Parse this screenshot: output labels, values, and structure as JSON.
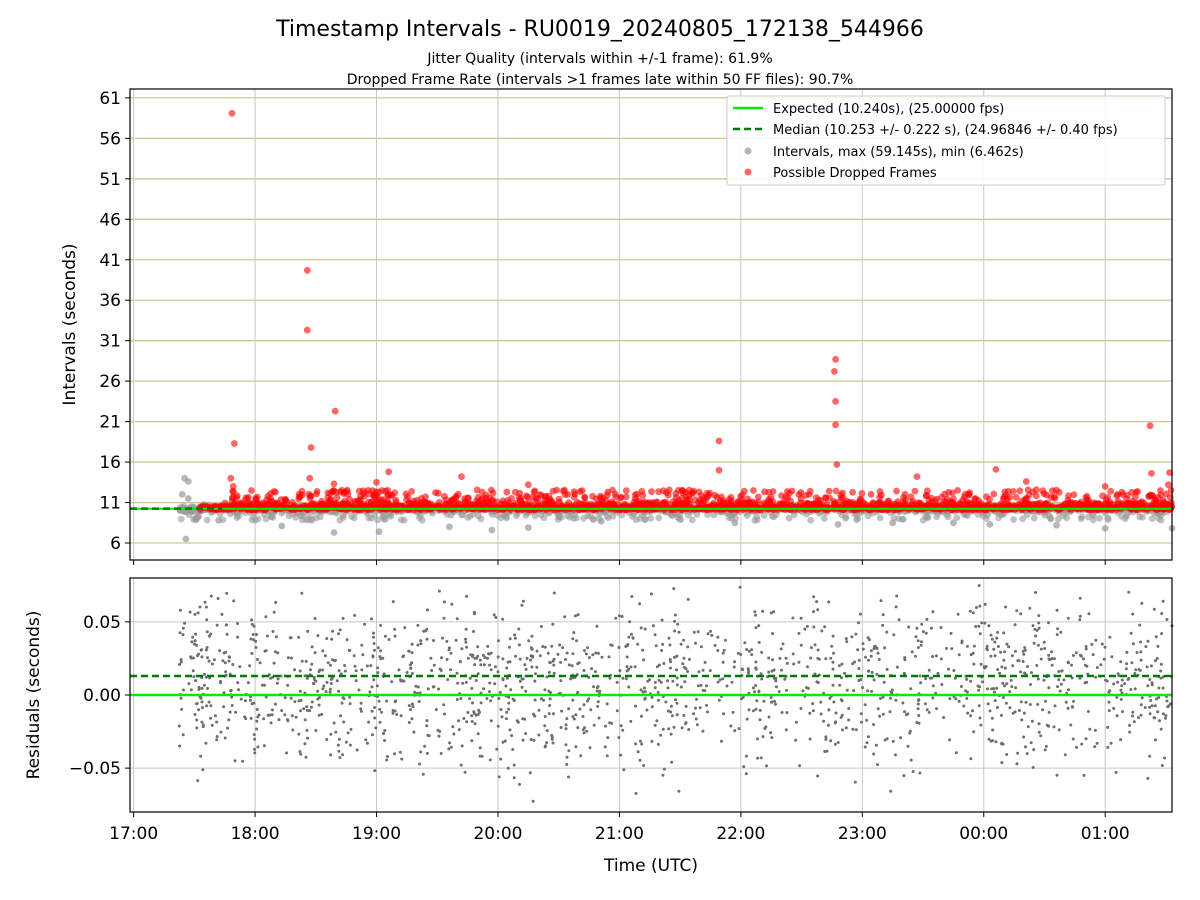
{
  "figure": {
    "title": "Timestamp Intervals - RU0019_20240805_172138_544966",
    "subtitle_1": "Jitter Quality (intervals within +/-1 frame): 61.9%",
    "subtitle_2": "Dropped Frame Rate (intervals >1 frames late within 50 FF files): 90.7%"
  },
  "chart_data": [
    {
      "type": "scatter",
      "ylabel": "Intervals (seconds)",
      "x_is_time": true,
      "xlim_hours": [
        16.97,
        25.55
      ],
      "ylim": [
        3.9,
        62.1
      ],
      "y_ticks": [
        6,
        11,
        16,
        21,
        26,
        31,
        36,
        41,
        46,
        51,
        56,
        61
      ],
      "y_tick_labels": [
        "6",
        "11",
        "16",
        "21",
        "26",
        "31",
        "36",
        "41",
        "46",
        "51",
        "56",
        "61"
      ],
      "grid": "major y gridlines (tan) and x gridlines (gray)",
      "legend": {
        "position": "upper-right",
        "entries": [
          "Expected (10.240s), (25.00000 fps)",
          "Median (10.253 +/- 0.222 s), (24.96846 +/- 0.40 fps)",
          "Intervals, max (59.145s), min (6.462s)",
          "Possible Dropped Frames"
        ]
      },
      "expected_line": 10.24,
      "median_line": 10.253,
      "median_line_end_hour": 17.73,
      "colors": {
        "expected": "#00ee00",
        "median": "#007a00",
        "intervals": "#999999",
        "dropped": "#ff0000",
        "ygrid": "#d4c58f",
        "xgrid": "#c8c8c8"
      },
      "dropped_frames": [
        {
          "t": 17.81,
          "y": 59.1
        },
        {
          "t": 17.83,
          "y": 18.3
        },
        {
          "t": 17.8,
          "y": 14.0
        },
        {
          "t": 17.82,
          "y": 13.0
        },
        {
          "t": 18.43,
          "y": 39.7
        },
        {
          "t": 18.43,
          "y": 32.3
        },
        {
          "t": 18.46,
          "y": 17.8
        },
        {
          "t": 18.45,
          "y": 14.0
        },
        {
          "t": 18.66,
          "y": 22.3
        },
        {
          "t": 18.65,
          "y": 13.3
        },
        {
          "t": 19.1,
          "y": 14.8
        },
        {
          "t": 19.0,
          "y": 13.5
        },
        {
          "t": 19.7,
          "y": 14.2
        },
        {
          "t": 20.25,
          "y": 13.2
        },
        {
          "t": 21.82,
          "y": 18.6
        },
        {
          "t": 21.82,
          "y": 15.0
        },
        {
          "t": 22.78,
          "y": 28.7
        },
        {
          "t": 22.77,
          "y": 27.2
        },
        {
          "t": 22.78,
          "y": 23.5
        },
        {
          "t": 22.78,
          "y": 20.6
        },
        {
          "t": 22.79,
          "y": 15.7
        },
        {
          "t": 23.45,
          "y": 14.2
        },
        {
          "t": 24.1,
          "y": 15.1
        },
        {
          "t": 24.35,
          "y": 13.6
        },
        {
          "t": 25.0,
          "y": 13.0
        },
        {
          "t": 25.37,
          "y": 20.5
        },
        {
          "t": 25.38,
          "y": 14.6
        },
        {
          "t": 25.53,
          "y": 14.7
        },
        {
          "t": 25.52,
          "y": 13.2
        }
      ],
      "interval_outliers": [
        {
          "t": 17.43,
          "y": 6.5
        },
        {
          "t": 17.42,
          "y": 14.0
        },
        {
          "t": 17.45,
          "y": 13.6
        },
        {
          "t": 17.4,
          "y": 12.0
        },
        {
          "t": 17.45,
          "y": 11.5
        },
        {
          "t": 17.7,
          "y": 8.8
        },
        {
          "t": 18.22,
          "y": 8.1
        },
        {
          "t": 18.65,
          "y": 7.3
        },
        {
          "t": 19.02,
          "y": 7.4
        },
        {
          "t": 19.6,
          "y": 8.0
        },
        {
          "t": 19.95,
          "y": 7.6
        },
        {
          "t": 20.25,
          "y": 7.9
        },
        {
          "t": 20.85,
          "y": 8.7
        },
        {
          "t": 21.95,
          "y": 8.5
        },
        {
          "t": 22.8,
          "y": 8.3
        },
        {
          "t": 23.25,
          "y": 8.5
        },
        {
          "t": 23.75,
          "y": 8.5
        },
        {
          "t": 24.05,
          "y": 8.3
        },
        {
          "t": 24.6,
          "y": 8.2
        },
        {
          "t": 25.0,
          "y": 7.8
        },
        {
          "t": 25.55,
          "y": 7.8
        }
      ],
      "band": {
        "start_hour": 17.38,
        "end_hour": 25.55,
        "center": 10.25,
        "spread": 0.6,
        "count": 1700
      },
      "dropped_band_upper": {
        "count": 700,
        "min": 10.8,
        "max": 12.6
      },
      "interval_band_lower": {
        "count": 260,
        "min": 8.8,
        "max": 9.9
      }
    },
    {
      "type": "scatter",
      "ylabel": "Residuals (seconds)",
      "xlabel": "Time (UTC)",
      "xlim_hours": [
        16.97,
        25.55
      ],
      "ylim": [
        -0.08,
        0.08
      ],
      "y_ticks": [
        -0.05,
        0.0,
        0.05
      ],
      "y_tick_labels": [
        "−0.05",
        "0.00",
        "0.05"
      ],
      "x_ticks_hours": [
        17,
        18,
        19,
        20,
        21,
        22,
        23,
        24,
        25
      ],
      "x_tick_labels": [
        "17:00",
        "18:00",
        "19:00",
        "20:00",
        "21:00",
        "22:00",
        "23:00",
        "00:00",
        "01:00"
      ],
      "expected_line": 0.0,
      "median_line": 0.013,
      "points": {
        "start_hour": 17.37,
        "end_hour": 25.55,
        "count": 1650,
        "center": 0.008,
        "sd": 0.028
      },
      "colors": {
        "points": "#6e6e6e",
        "expected": "#00ee00",
        "median": "#007a00",
        "grid": "#c8c8c8"
      }
    }
  ]
}
